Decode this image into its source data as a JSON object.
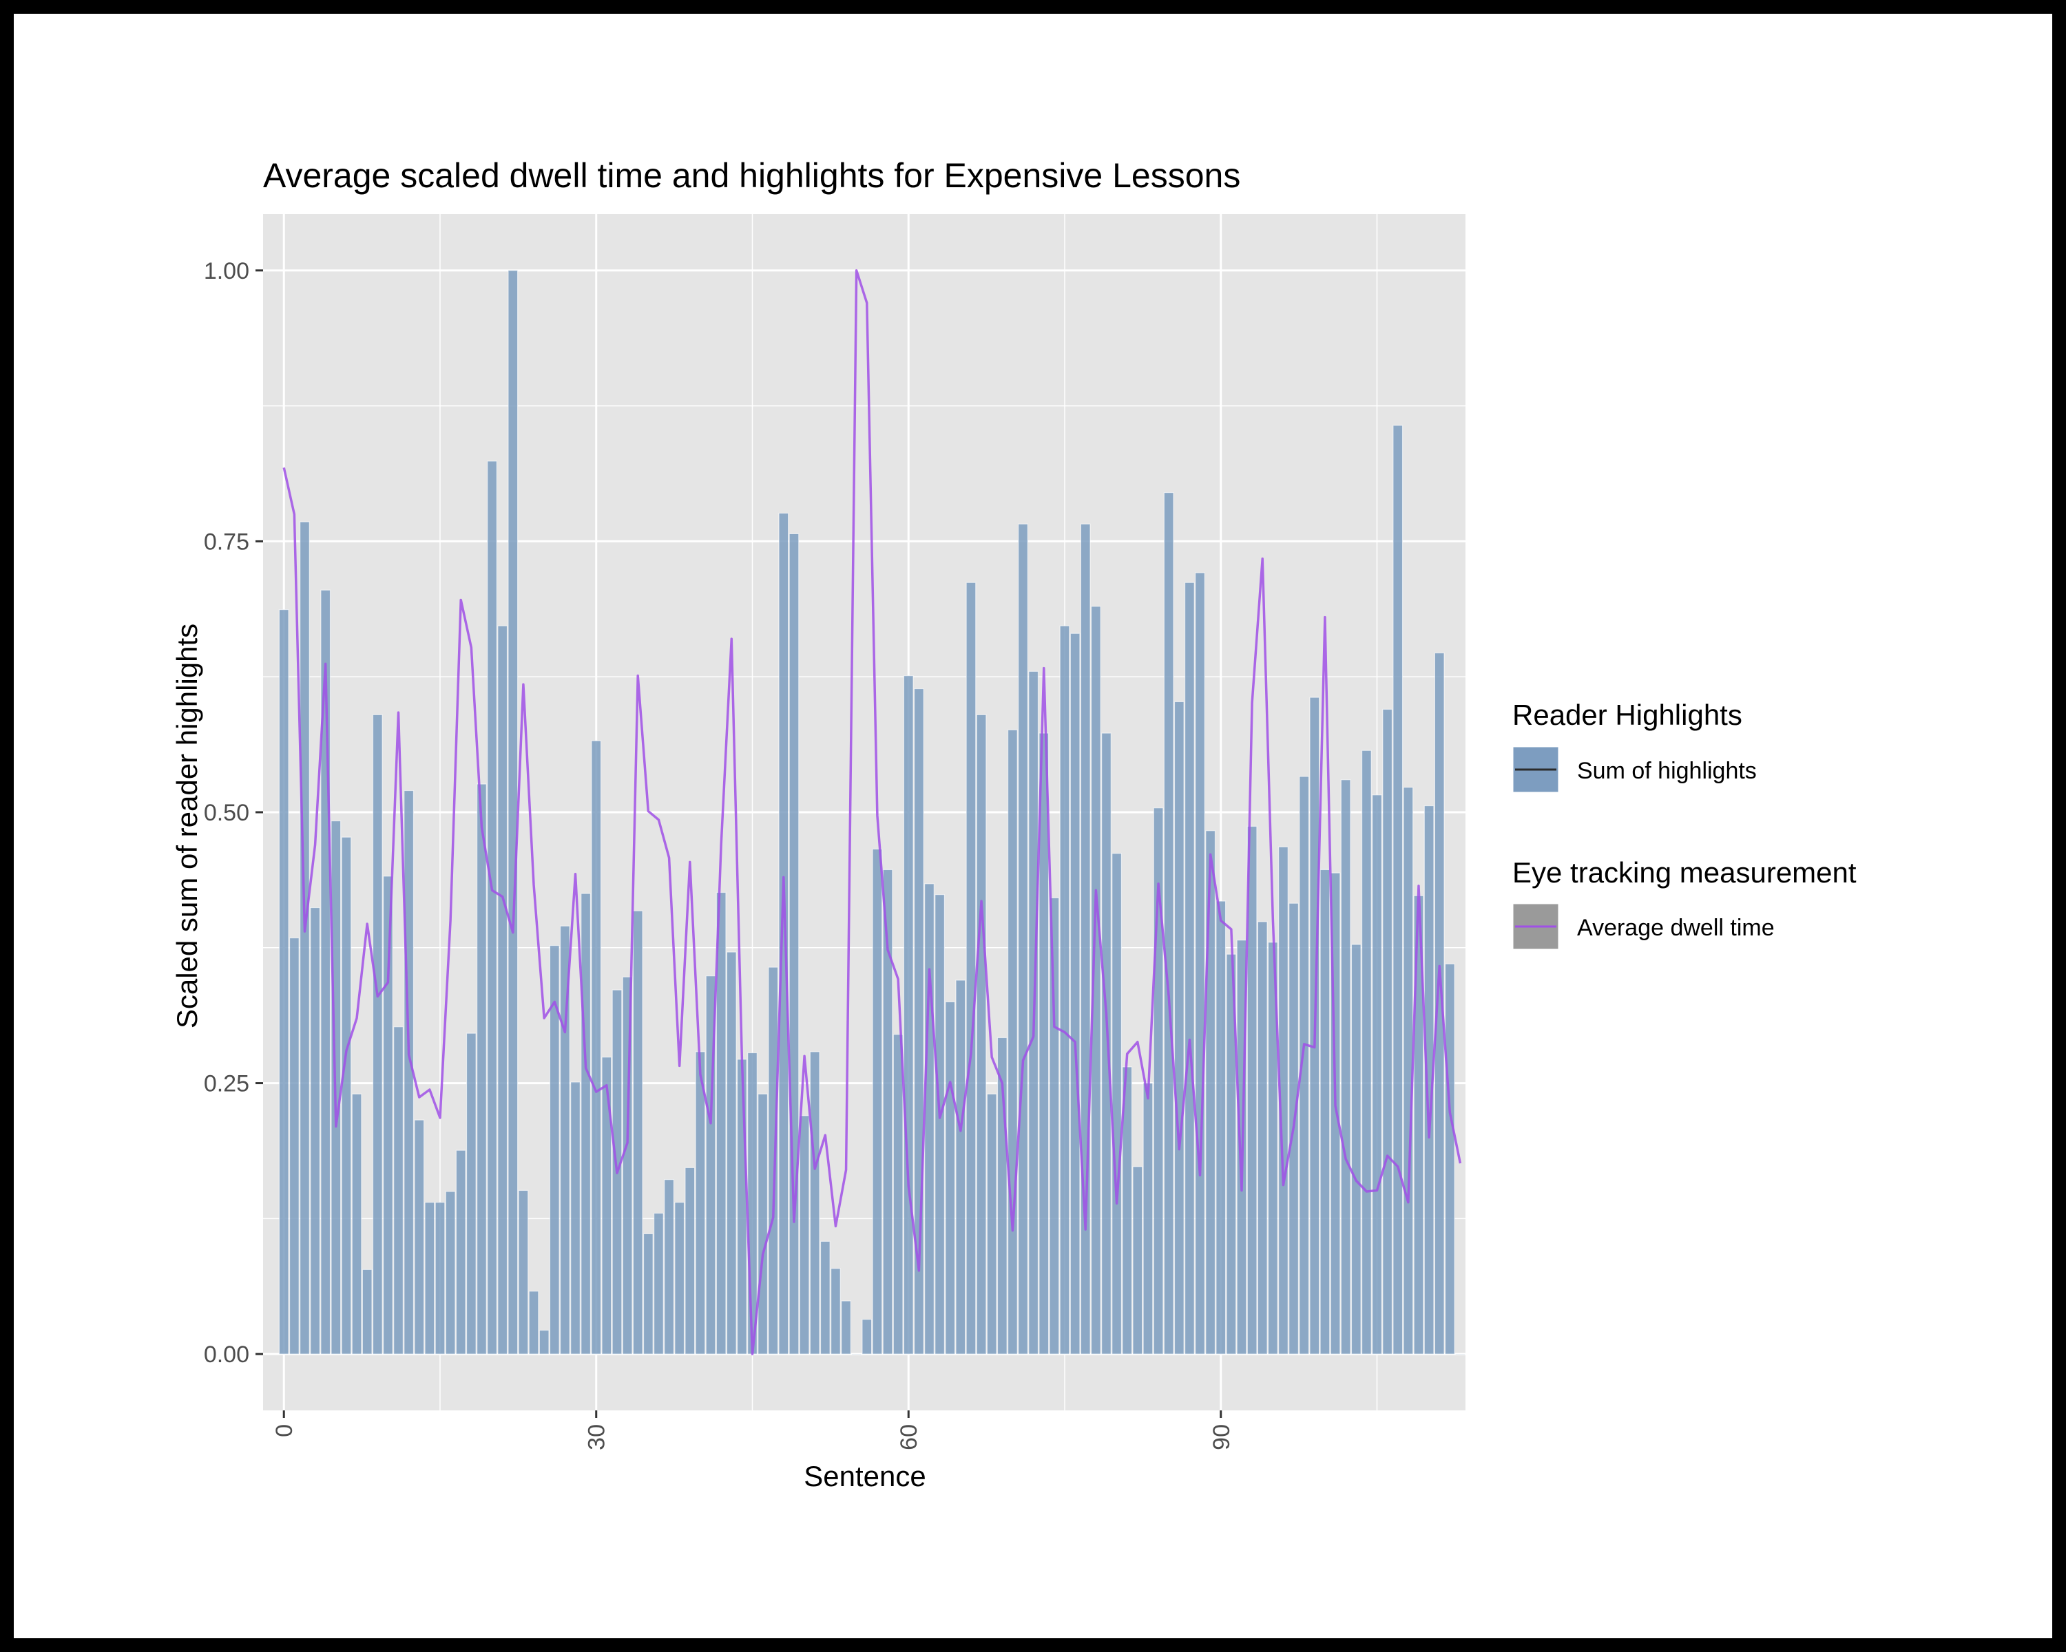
{
  "colors": {
    "panel_bg": "#e5e5e5",
    "grid": "#ffffff",
    "bar_fill": "#7d9dc0",
    "line": "#a050e6",
    "axis_text": "#4d4d4d",
    "text": "#000000"
  },
  "chart_data": {
    "type": "bar",
    "title": "Average scaled dwell time and highlights for Expensive Lessons",
    "xlabel": "Sentence",
    "ylabel": "Scaled sum of reader highlights",
    "xlim": [
      -2,
      113.5
    ],
    "ylim": [
      -0.052,
      1.052
    ],
    "x_ticks": [
      0,
      30,
      60,
      90
    ],
    "x_tick_labels": [
      "0",
      "30",
      "60",
      "90"
    ],
    "y_ticks": [
      0,
      0.25,
      0.5,
      0.75,
      1
    ],
    "y_tick_labels": [
      "0.00",
      "0.25",
      "0.50",
      "0.75",
      "1.00"
    ],
    "grid": true,
    "legend_position": "right",
    "legends": [
      {
        "title": "Reader Highlights",
        "label": "Sum of highlights",
        "icon": "bar-swatch"
      },
      {
        "title": "Eye tracking measurement",
        "label": "Average dwell time",
        "icon": "line-swatch"
      }
    ],
    "series": [
      {
        "name": "Sum of highlights",
        "type": "bar",
        "x": [
          0,
          1,
          2,
          3,
          4,
          5,
          6,
          7,
          8,
          9,
          10,
          11,
          12,
          13,
          14,
          15,
          16,
          17,
          18,
          19,
          20,
          21,
          22,
          23,
          24,
          25,
          26,
          27,
          28,
          29,
          30,
          31,
          32,
          33,
          34,
          35,
          36,
          37,
          38,
          39,
          40,
          41,
          42,
          43,
          44,
          45,
          46,
          47,
          48,
          49,
          50,
          51,
          52,
          53,
          54,
          55,
          56,
          57,
          58,
          59,
          60,
          61,
          62,
          63,
          64,
          65,
          66,
          67,
          68,
          69,
          70,
          71,
          72,
          73,
          74,
          75,
          76,
          77,
          78,
          79,
          80,
          81,
          82,
          83,
          84,
          85,
          86,
          87,
          88,
          89,
          90,
          91,
          92,
          93,
          94,
          95,
          96,
          97,
          98,
          99,
          100,
          101,
          102,
          103,
          104,
          105,
          106,
          107,
          108,
          109,
          110,
          111,
          112,
          113
        ],
        "values": [
          0.687,
          0.384,
          0.768,
          0.412,
          0.705,
          0.492,
          0.477,
          0.24,
          0.078,
          0.59,
          0.441,
          0.302,
          0.52,
          0.216,
          0.14,
          0.14,
          0.15,
          0.188,
          0.296,
          0.526,
          0.824,
          0.672,
          1.0,
          0.151,
          0.058,
          0.022,
          0.377,
          0.395,
          0.251,
          0.425,
          0.566,
          0.274,
          0.336,
          0.348,
          0.409,
          0.111,
          0.13,
          0.161,
          0.14,
          0.172,
          0.279,
          0.349,
          0.426,
          0.371,
          0.272,
          0.278,
          0.24,
          0.357,
          0.776,
          0.757,
          0.22,
          0.279,
          0.104,
          0.079,
          0.049,
          0.0,
          0.032,
          0.466,
          0.447,
          0.295,
          0.626,
          0.614,
          0.434,
          0.424,
          0.325,
          0.345,
          0.712,
          0.59,
          0.24,
          0.292,
          0.576,
          0.766,
          0.63,
          0.573,
          0.421,
          0.672,
          0.665,
          0.766,
          0.69,
          0.573,
          0.462,
          0.265,
          0.173,
          0.25,
          0.504,
          0.795,
          0.602,
          0.712,
          0.721,
          0.483,
          0.418,
          0.369,
          0.382,
          0.487,
          0.399,
          0.38,
          0.468,
          0.416,
          0.533,
          0.606,
          0.447,
          0.444,
          0.53,
          0.378,
          0.557,
          0.516,
          0.595,
          0.857,
          0.523,
          0.423,
          0.506,
          0.647,
          0.36,
          0.0
        ]
      },
      {
        "name": "Average dwell time",
        "type": "line",
        "x": [
          0,
          1,
          2,
          3,
          4,
          5,
          6,
          7,
          8,
          9,
          10,
          11,
          12,
          13,
          14,
          15,
          16,
          17,
          18,
          19,
          20,
          21,
          22,
          23,
          24,
          25,
          26,
          27,
          28,
          29,
          30,
          31,
          32,
          33,
          34,
          35,
          36,
          37,
          38,
          39,
          40,
          41,
          42,
          43,
          44,
          45,
          46,
          47,
          48,
          49,
          50,
          51,
          52,
          53,
          54,
          55,
          56,
          57,
          58,
          59,
          60,
          61,
          62,
          63,
          64,
          65,
          66,
          67,
          68,
          69,
          70,
          71,
          72,
          73,
          74,
          75,
          76,
          77,
          78,
          79,
          80,
          81,
          82,
          83,
          84,
          85,
          86,
          87,
          88,
          89,
          90,
          91,
          92,
          93,
          94,
          95,
          96,
          97,
          98,
          99,
          100,
          101,
          102,
          103,
          104,
          105,
          106,
          107,
          108,
          109,
          110,
          111,
          112,
          113
        ],
        "values": [
          0.818,
          0.775,
          0.39,
          0.47,
          0.637,
          0.21,
          0.28,
          0.31,
          0.397,
          0.33,
          0.343,
          0.592,
          0.276,
          0.237,
          0.244,
          0.218,
          0.4,
          0.696,
          0.652,
          0.486,
          0.428,
          0.422,
          0.389,
          0.618,
          0.433,
          0.31,
          0.325,
          0.297,
          0.443,
          0.264,
          0.242,
          0.248,
          0.167,
          0.195,
          0.626,
          0.501,
          0.493,
          0.458,
          0.266,
          0.454,
          0.258,
          0.213,
          0.47,
          0.66,
          0.272,
          0.0,
          0.092,
          0.126,
          0.44,
          0.122,
          0.275,
          0.171,
          0.202,
          0.118,
          0.17,
          1.0,
          0.97,
          0.497,
          0.373,
          0.346,
          0.155,
          0.077,
          0.355,
          0.218,
          0.251,
          0.206,
          0.277,
          0.418,
          0.274,
          0.25,
          0.114,
          0.271,
          0.293,
          0.633,
          0.302,
          0.297,
          0.288,
          0.115,
          0.428,
          0.314,
          0.139,
          0.277,
          0.288,
          0.236,
          0.434,
          0.33,
          0.189,
          0.29,
          0.165,
          0.461,
          0.4,
          0.392,
          0.151,
          0.601,
          0.734,
          0.401,
          0.156,
          0.21,
          0.286,
          0.283,
          0.68,
          0.229,
          0.18,
          0.16,
          0.15,
          0.151,
          0.183,
          0.173,
          0.14,
          0.432,
          0.2,
          0.358,
          0.223,
          0.176
        ]
      }
    ]
  }
}
